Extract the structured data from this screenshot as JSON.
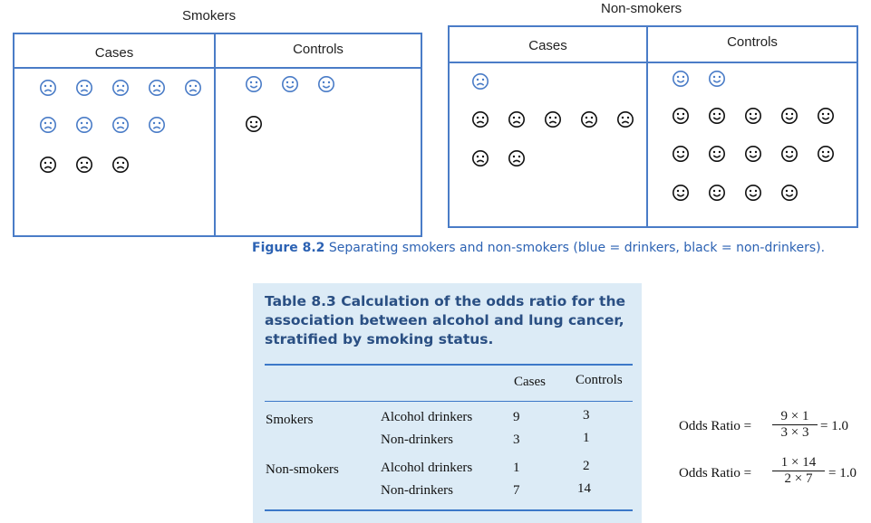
{
  "figure": {
    "smokers": {
      "title": "Smokers",
      "col_cases": "Cases",
      "col_controls": "Controls"
    },
    "non_smokers": {
      "title": "Non-smokers",
      "col_cases": "Cases",
      "col_controls": "Controls"
    },
    "caption_label": "Figure 8.2",
    "caption_text": "Separating smokers and non-smokers (blue = drinkers, black = non-drinkers).",
    "colors": {
      "blue": "#4a7cc7",
      "black": "#111111"
    },
    "icons": [
      "sad-face-icon",
      "happy-face-icon"
    ]
  },
  "table": {
    "title": "Table 8.3 Calculation of the odds ratio for the association between alcohol and lung cancer, stratified by smoking status.",
    "header": {
      "cases": "Cases",
      "controls": "Controls"
    },
    "rows": [
      {
        "group": "Smokers",
        "exposure": "Alcohol drinkers",
        "cases": "9",
        "controls": "3"
      },
      {
        "group": "",
        "exposure": "Non-drinkers",
        "cases": "3",
        "controls": "1"
      },
      {
        "group": "Non-smokers",
        "exposure": "Alcohol drinkers",
        "cases": "1",
        "controls": "2"
      },
      {
        "group": "",
        "exposure": "Non-drinkers",
        "cases": "7",
        "controls": "14"
      }
    ]
  },
  "odds": [
    {
      "label": "Odds Ratio =",
      "numerator": "9 × 1",
      "denominator": "3 × 3",
      "result": "= 1.0"
    },
    {
      "label": "Odds Ratio =",
      "numerator": "1 × 14",
      "denominator": "2 × 7",
      "result": "= 1.0"
    }
  ]
}
